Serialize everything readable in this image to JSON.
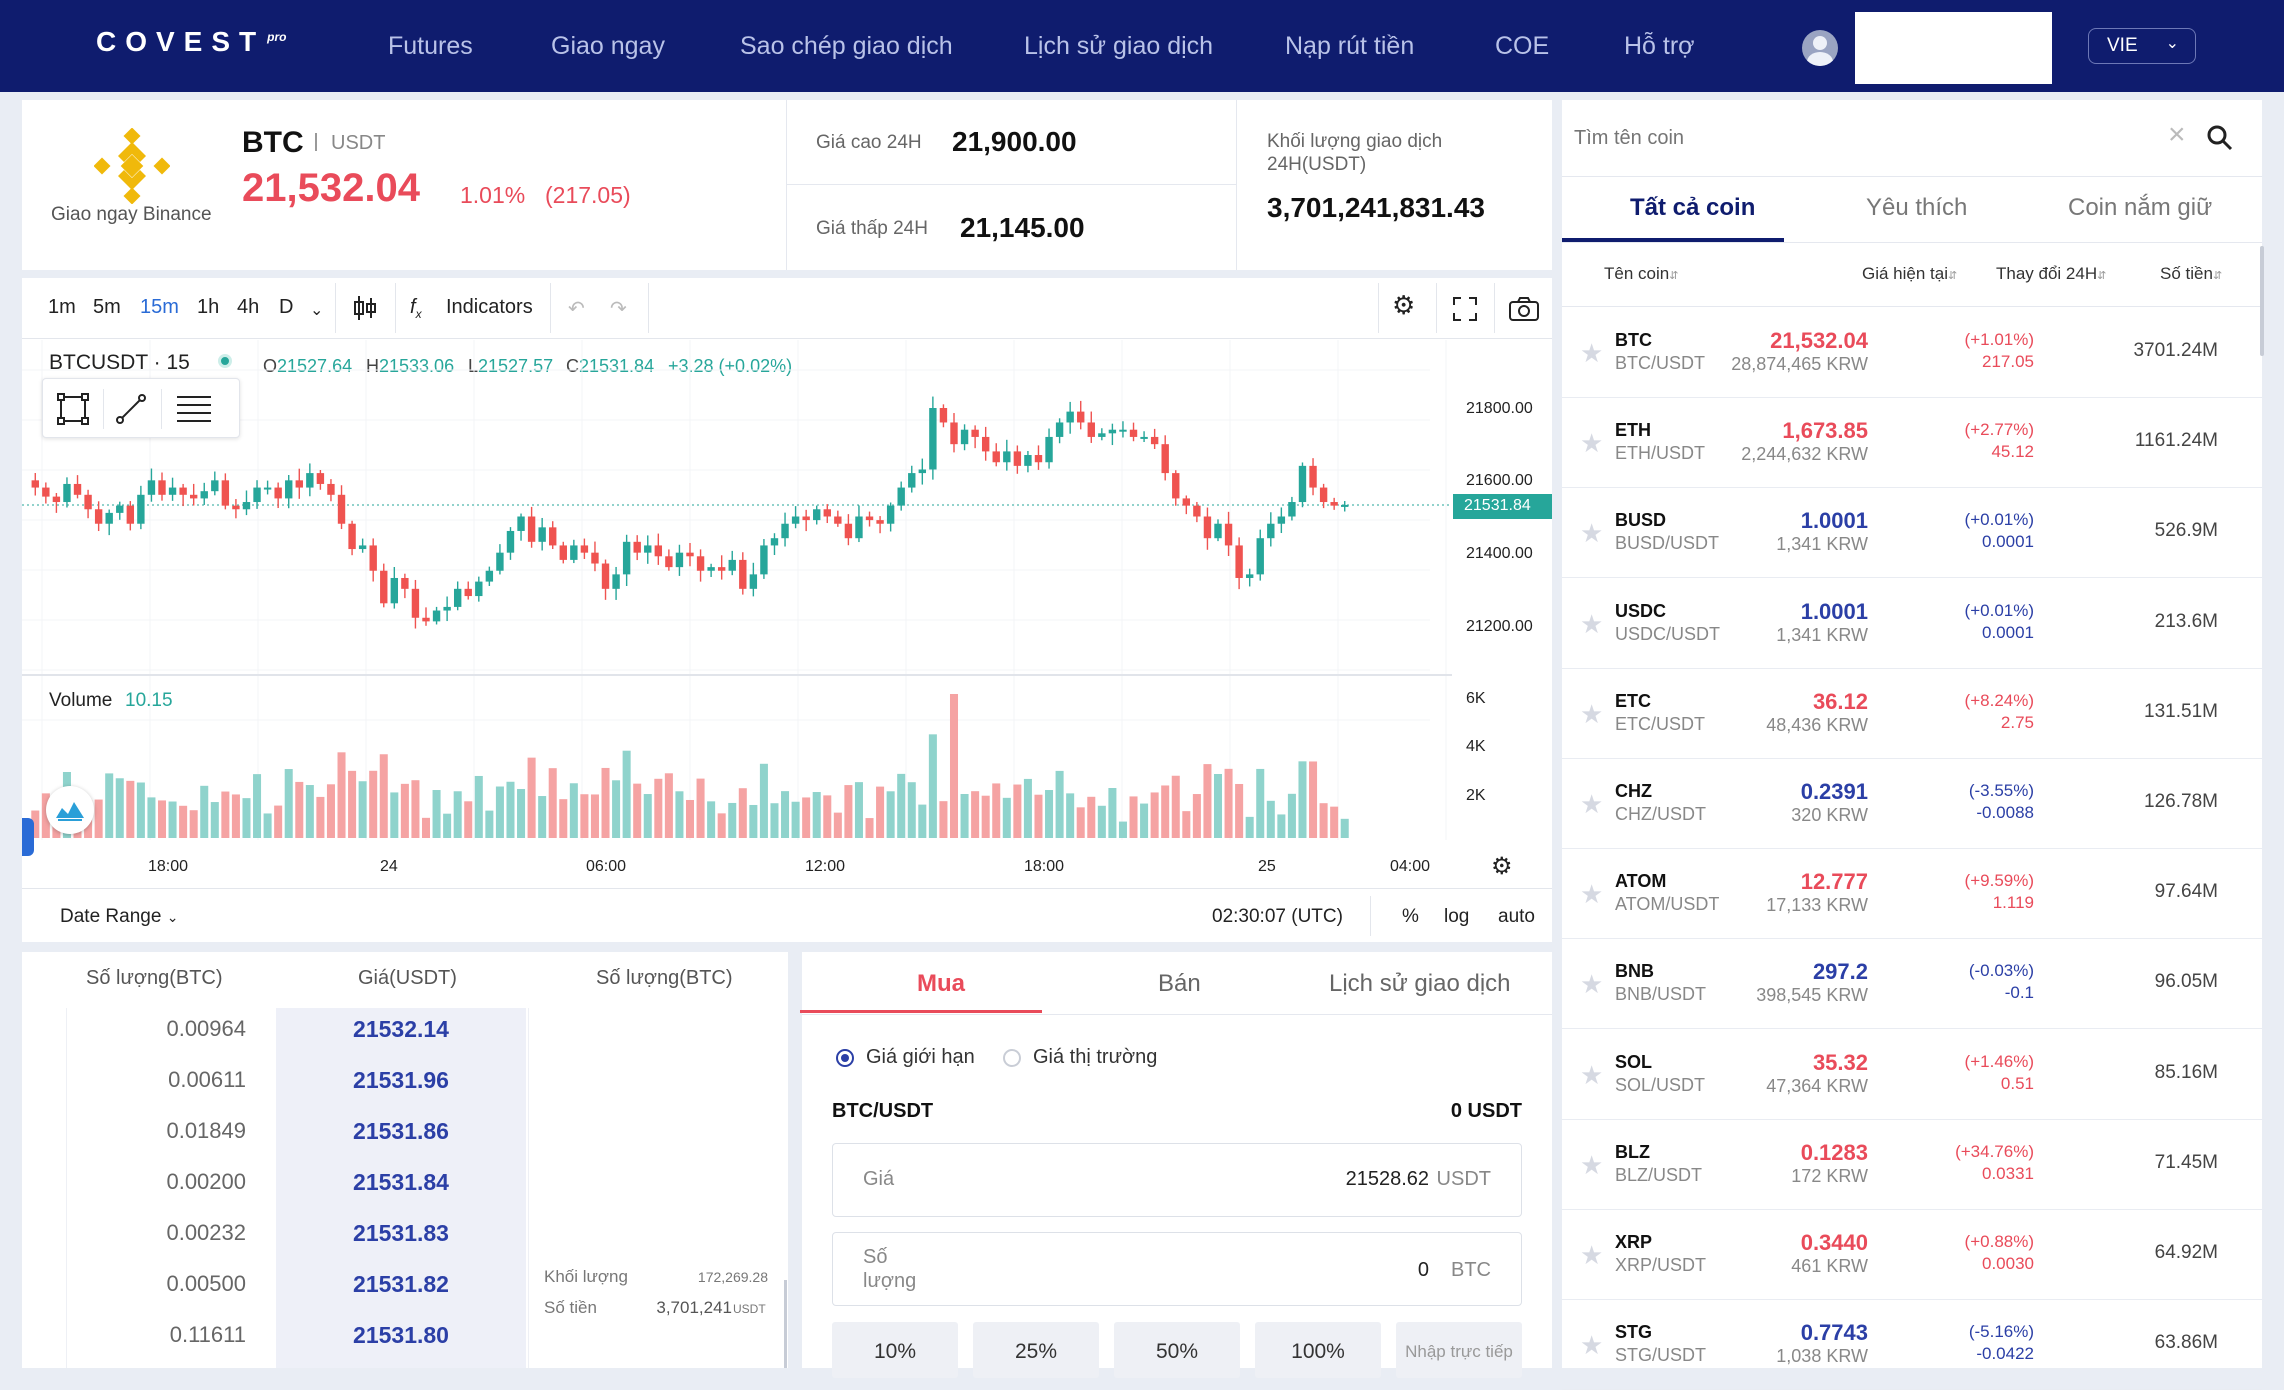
{
  "nav": {
    "logo": "COVEST",
    "logo_sup": "pro",
    "links": [
      "Futures",
      "Giao ngay",
      "Sao chép giao dịch",
      "Lịch sử giao dịch",
      "Nạp rút tiền",
      "COE",
      "Hỗ trợ"
    ],
    "lang": "VIE"
  },
  "ticker": {
    "source_label": "Giao ngay Binance",
    "symbol": "BTC",
    "quote": "USDT",
    "last_price": "21,532.04",
    "change_pct": "1.01%",
    "change_abs": "(217.05)",
    "high_label": "Giá cao 24H",
    "high_value": "21,900.00",
    "low_label": "Giá thấp 24H",
    "low_value": "21,145.00",
    "volume_label": "Khối lượng giao dịch 24H(USDT)",
    "volume_value": "3,701,241,831.43"
  },
  "chart": {
    "intervals": [
      "1m",
      "5m",
      "15m",
      "1h",
      "4h",
      "D"
    ],
    "active_interval": "15m",
    "indicators_label": "Indicators",
    "title": "BTCUSDT · 15",
    "ohlc": {
      "o": "21527.64",
      "h": "21533.06",
      "l": "21527.57",
      "c": "21531.84",
      "chg": "+3.28 (+0.02%)"
    },
    "price_ticks": [
      "21800.00",
      "21600.00",
      "21400.00",
      "21200.00"
    ],
    "current_price_tag": "21531.84",
    "volume_label": "Volume",
    "volume_value": "10.15",
    "volume_ticks": [
      "6K",
      "4K",
      "2K"
    ],
    "time_ticks": [
      "18:00",
      "24",
      "06:00",
      "12:00",
      "18:00",
      "25",
      "04:00"
    ],
    "date_range_label": "Date Range",
    "clock": "02:30:07 (UTC)",
    "scale_opts": [
      "%",
      "log",
      "auto"
    ],
    "colors": {
      "up": "#26a69a",
      "down": "#ef5350",
      "vol_up": "#8fd3cc",
      "vol_down": "#f5a3a3"
    }
  },
  "chart_data": {
    "type": "candlestick",
    "symbol": "BTCUSDT",
    "interval": "15",
    "ylim": [
      21150,
      21900
    ],
    "close": [
      21580,
      21555,
      21540,
      21590,
      21560,
      21520,
      21480,
      21510,
      21530,
      21480,
      21560,
      21600,
      21560,
      21580,
      21560,
      21550,
      21570,
      21600,
      21530,
      21520,
      21540,
      21580,
      21580,
      21550,
      21600,
      21580,
      21620,
      21590,
      21560,
      21480,
      21410,
      21420,
      21350,
      21260,
      21330,
      21300,
      21220,
      21210,
      21240,
      21250,
      21300,
      21280,
      21320,
      21350,
      21400,
      21460,
      21500,
      21430,
      21470,
      21420,
      21380,
      21420,
      21400,
      21370,
      21300,
      21340,
      21430,
      21400,
      21420,
      21390,
      21360,
      21400,
      21390,
      21350,
      21360,
      21350,
      21380,
      21300,
      21340,
      21420,
      21440,
      21480,
      21500,
      21490,
      21520,
      21500,
      21480,
      21440,
      21500,
      21490,
      21480,
      21530,
      21580,
      21620,
      21630,
      21800,
      21760,
      21700,
      21740,
      21720,
      21680,
      21650,
      21680,
      21640,
      21670,
      21650,
      21720,
      21760,
      21790,
      21760,
      21720,
      21730,
      21740,
      21740,
      21720,
      21720,
      21700,
      21620,
      21550,
      21530,
      21500,
      21440,
      21480,
      21420,
      21330,
      21340,
      21440,
      21480,
      21500,
      21540,
      21640,
      21580,
      21540,
      21530,
      21532
    ]
  },
  "orderbook": {
    "headers": [
      "Số lượng(BTC)",
      "Giá(USDT)",
      "Số lượng(BTC)"
    ],
    "rows": [
      {
        "qty": "0.00964",
        "price": "21532.14"
      },
      {
        "qty": "0.00611",
        "price": "21531.96"
      },
      {
        "qty": "0.01849",
        "price": "21531.86"
      },
      {
        "qty": "0.00200",
        "price": "21531.84"
      },
      {
        "qty": "0.00232",
        "price": "21531.83"
      },
      {
        "qty": "0.00500",
        "price": "21531.82"
      },
      {
        "qty": "0.11611",
        "price": "21531.80"
      }
    ],
    "side_volume_label": "Khối lượng",
    "side_volume_value": "172,269.28",
    "side_amount_label": "Số tiền",
    "side_amount_value": "3,701,241",
    "side_amount_unit": "USDT"
  },
  "order_form": {
    "tabs": [
      "Mua",
      "Bán",
      "Lịch sử giao dịch"
    ],
    "active_tab": "Mua",
    "type_limit": "Giá giới hạn",
    "type_market": "Giá thị trường",
    "pair": "BTC/USDT",
    "balance": "0 USDT",
    "price_label": "Giá",
    "price_value": "21528.62",
    "price_unit": "USDT",
    "qty_label_1": "Số",
    "qty_label_2": "lượng",
    "qty_value": "0",
    "qty_unit": "BTC",
    "pct_buttons": [
      "10%",
      "25%",
      "50%",
      "100%"
    ],
    "direct_input": "Nhập trực tiếp"
  },
  "coin_list": {
    "search_placeholder": "Tìm tên coin",
    "tabs": [
      "Tất cả coin",
      "Yêu thích",
      "Coin nắm giữ"
    ],
    "active_tab": "Tất cả coin",
    "headers": {
      "name": "Tên coin",
      "price": "Giá hiện tại",
      "change": "Thay đổi 24H",
      "amount": "Số tiền"
    },
    "coins": [
      {
        "sym": "BTC",
        "pair": "BTC/USDT",
        "price": "21,532.04",
        "krw": "28,874,465 KRW",
        "pct": "(+1.01%)",
        "abs": "217.05",
        "vol": "3701.24M",
        "dir": "up"
      },
      {
        "sym": "ETH",
        "pair": "ETH/USDT",
        "price": "1,673.85",
        "krw": "2,244,632 KRW",
        "pct": "(+2.77%)",
        "abs": "45.12",
        "vol": "1161.24M",
        "dir": "up"
      },
      {
        "sym": "BUSD",
        "pair": "BUSD/USDT",
        "price": "1.0001",
        "krw": "1,341 KRW",
        "pct": "(+0.01%)",
        "abs": "0.0001",
        "vol": "526.9M",
        "dir": "down"
      },
      {
        "sym": "USDC",
        "pair": "USDC/USDT",
        "price": "1.0001",
        "krw": "1,341 KRW",
        "pct": "(+0.01%)",
        "abs": "0.0001",
        "vol": "213.6M",
        "dir": "down"
      },
      {
        "sym": "ETC",
        "pair": "ETC/USDT",
        "price": "36.12",
        "krw": "48,436 KRW",
        "pct": "(+8.24%)",
        "abs": "2.75",
        "vol": "131.51M",
        "dir": "up"
      },
      {
        "sym": "CHZ",
        "pair": "CHZ/USDT",
        "price": "0.2391",
        "krw": "320 KRW",
        "pct": "(-3.55%)",
        "abs": "-0.0088",
        "vol": "126.78M",
        "dir": "down"
      },
      {
        "sym": "ATOM",
        "pair": "ATOM/USDT",
        "price": "12.777",
        "krw": "17,133 KRW",
        "pct": "(+9.59%)",
        "abs": "1.119",
        "vol": "97.64M",
        "dir": "up"
      },
      {
        "sym": "BNB",
        "pair": "BNB/USDT",
        "price": "297.2",
        "krw": "398,545 KRW",
        "pct": "(-0.03%)",
        "abs": "-0.1",
        "vol": "96.05M",
        "dir": "down"
      },
      {
        "sym": "SOL",
        "pair": "SOL/USDT",
        "price": "35.32",
        "krw": "47,364 KRW",
        "pct": "(+1.46%)",
        "abs": "0.51",
        "vol": "85.16M",
        "dir": "up"
      },
      {
        "sym": "BLZ",
        "pair": "BLZ/USDT",
        "price": "0.1283",
        "krw": "172 KRW",
        "pct": "(+34.76%)",
        "abs": "0.0331",
        "vol": "71.45M",
        "dir": "up"
      },
      {
        "sym": "XRP",
        "pair": "XRP/USDT",
        "price": "0.3440",
        "krw": "461 KRW",
        "pct": "(+0.88%)",
        "abs": "0.0030",
        "vol": "64.92M",
        "dir": "up"
      },
      {
        "sym": "STG",
        "pair": "STG/USDT",
        "price": "0.7743",
        "krw": "1,038 KRW",
        "pct": "(-5.16%)",
        "abs": "-0.0422",
        "vol": "63.86M",
        "dir": "down"
      }
    ]
  }
}
